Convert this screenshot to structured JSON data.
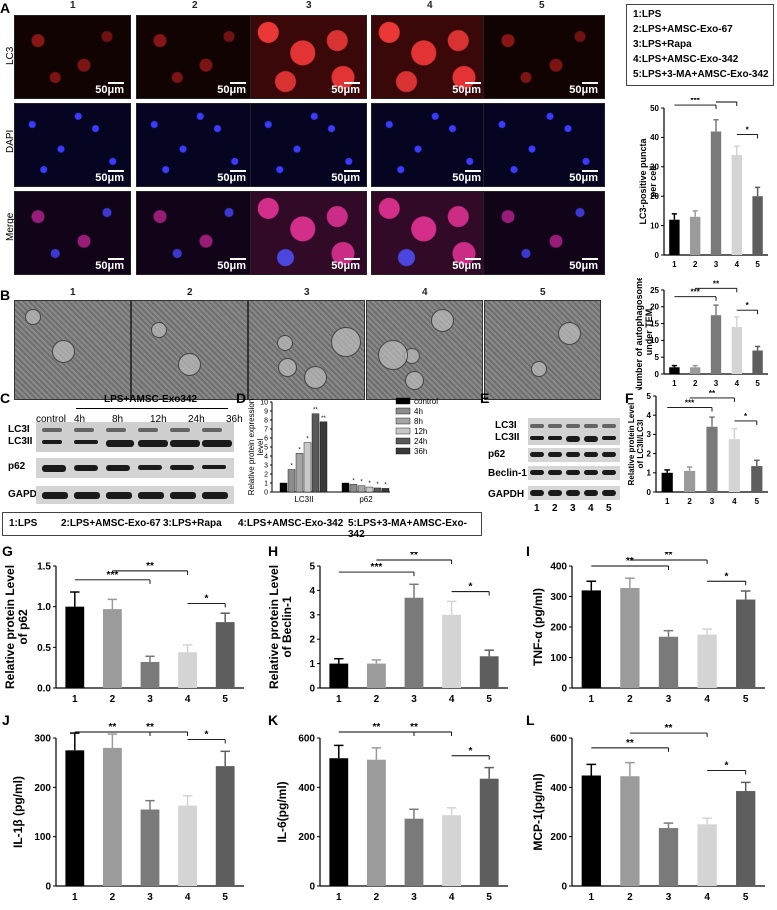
{
  "panels": {
    "A": "A",
    "B": "B",
    "C": "C",
    "D": "D",
    "E": "E",
    "F": "F",
    "G": "G",
    "H": "H",
    "I": "I",
    "J": "J",
    "K": "K",
    "L": "L"
  },
  "panelA": {
    "columns": [
      "1",
      "2",
      "3",
      "4",
      "5"
    ],
    "rows": [
      "LC3",
      "DAPI",
      "Merge"
    ],
    "scale": "50μm"
  },
  "legend_top": [
    "1:LPS",
    "2:LPS+AMSC-Exo-67",
    "3:LPS+Rapa",
    "4:LPS+AMSC-Exo-342",
    "5:LPS+3-MA+AMSC-Exo-342"
  ],
  "legend_mid": [
    "1:LPS",
    "2:LPS+AMSC-Exo-67",
    "3:LPS+Rapa",
    "4:LPS+AMSC-Exo-342",
    "5:LPS+3-MA+AMSC-Exo-342"
  ],
  "panelB": {
    "columns": [
      "1",
      "2",
      "3",
      "4",
      "5"
    ]
  },
  "panelC": {
    "header": "LPS+AMSC-Exo342",
    "columns": [
      "control",
      "4h",
      "8h",
      "12h",
      "24h",
      "36h"
    ],
    "rows": [
      "LC3I",
      "LC3II",
      "p62",
      "GAPDH"
    ]
  },
  "panelE": {
    "rows": [
      "LC3I",
      "LC3II",
      "p62",
      "Beclin-1",
      "GAPDH"
    ],
    "lanes": [
      "1",
      "2",
      "3",
      "4",
      "5"
    ]
  },
  "colors": {
    "g1": "#000000",
    "g2": "#9b9b9b",
    "g3": "#7a7a7a",
    "g4": "#d4d4d4",
    "g5": "#5e5e5e"
  },
  "chart_data": [
    {
      "id": "A-right",
      "type": "bar",
      "ylabel": "LC3-positive puncta per cell",
      "categories": [
        "1",
        "2",
        "3",
        "4",
        "5"
      ],
      "values": [
        12,
        13,
        42,
        34,
        20
      ],
      "errors": [
        2,
        2,
        4,
        3,
        3
      ],
      "ylim": [
        0,
        50
      ],
      "yticks": [
        "0",
        "10",
        "20",
        "30",
        "40",
        "50"
      ],
      "annotations": [
        {
          "from": 1,
          "to": 3,
          "label": "***"
        },
        {
          "from": 3,
          "to": 4,
          "label": "**"
        },
        {
          "from": 4,
          "to": 5,
          "label": "*"
        }
      ]
    },
    {
      "id": "B-right",
      "type": "bar",
      "ylabel": "Number of autophagosomes under TEM",
      "categories": [
        "1",
        "2",
        "3",
        "4",
        "5"
      ],
      "values": [
        2,
        2,
        17.5,
        14,
        7
      ],
      "errors": [
        0.5,
        0.5,
        3,
        3,
        1.2
      ],
      "ylim": [
        0,
        25
      ],
      "yticks": [
        "0",
        "5",
        "10",
        "15",
        "20",
        "25"
      ],
      "annotations": [
        {
          "from": 1,
          "to": 3,
          "label": "***"
        },
        {
          "from": 2,
          "to": 4,
          "label": "**"
        },
        {
          "from": 4,
          "to": 5,
          "label": "*"
        }
      ]
    },
    {
      "id": "D",
      "type": "bar",
      "ylabel": "Relative protein expression level",
      "categories": [
        "LC3II",
        "p62"
      ],
      "series": [
        {
          "name": "control",
          "values": [
            1,
            1
          ]
        },
        {
          "name": "4h",
          "values": [
            2.5,
            0.85
          ]
        },
        {
          "name": "8h",
          "values": [
            4.3,
            0.7
          ]
        },
        {
          "name": "12h",
          "values": [
            5.5,
            0.55
          ]
        },
        {
          "name": "24h",
          "values": [
            8.7,
            0.45
          ]
        },
        {
          "name": "36h",
          "values": [
            7.8,
            0.4
          ]
        }
      ],
      "ylim": [
        0,
        10
      ],
      "yticks": [
        "0",
        "1",
        "2",
        "3",
        "4",
        "5",
        "6",
        "7",
        "8",
        "9",
        "10"
      ]
    },
    {
      "id": "F",
      "type": "bar",
      "ylabel": "Relative protein Level of LC3II/LC3I",
      "categories": [
        "1",
        "2",
        "3",
        "4",
        "5"
      ],
      "values": [
        1,
        1.1,
        3.4,
        2.75,
        1.35
      ],
      "errors": [
        0.15,
        0.2,
        0.5,
        0.55,
        0.3
      ],
      "ylim": [
        0,
        5
      ],
      "yticks": [
        "0",
        "1",
        "2",
        "3",
        "4",
        "5"
      ],
      "annotations": [
        {
          "from": 1,
          "to": 3,
          "label": "***"
        },
        {
          "from": 2,
          "to": 4,
          "label": "**"
        },
        {
          "from": 4,
          "to": 5,
          "label": "*"
        }
      ]
    },
    {
      "id": "G",
      "type": "bar",
      "ylabel": "Relative protein Level of p62",
      "categories": [
        "1",
        "2",
        "3",
        "4",
        "5"
      ],
      "values": [
        1.0,
        0.97,
        0.32,
        0.44,
        0.81
      ],
      "errors": [
        0.18,
        0.12,
        0.07,
        0.09,
        0.11
      ],
      "ylim": [
        0,
        1.5
      ],
      "yticks": [
        "0.0",
        "0.5",
        "1.0",
        "1.5"
      ],
      "annotations": [
        {
          "from": 1,
          "to": 3,
          "label": "***"
        },
        {
          "from": 2,
          "to": 4,
          "label": "**"
        },
        {
          "from": 4,
          "to": 5,
          "label": "*"
        }
      ]
    },
    {
      "id": "H",
      "type": "bar",
      "ylabel": "Relative protein Level of Beclin-1",
      "categories": [
        "1",
        "2",
        "3",
        "4",
        "5"
      ],
      "values": [
        1.0,
        1.0,
        3.7,
        3.0,
        1.3
      ],
      "errors": [
        0.2,
        0.15,
        0.55,
        0.55,
        0.25
      ],
      "ylim": [
        0,
        5
      ],
      "yticks": [
        "0",
        "1",
        "2",
        "3",
        "4",
        "5"
      ],
      "annotations": [
        {
          "from": 1,
          "to": 3,
          "label": "***"
        },
        {
          "from": 2,
          "to": 4,
          "label": "**"
        },
        {
          "from": 4,
          "to": 5,
          "label": "*"
        }
      ]
    },
    {
      "id": "I",
      "type": "bar",
      "ylabel": "TNF-α (pg/ml)",
      "categories": [
        "1",
        "2",
        "3",
        "4",
        "5"
      ],
      "values": [
        320,
        328,
        168,
        175,
        290
      ],
      "errors": [
        30,
        32,
        20,
        18,
        28
      ],
      "ylim": [
        0,
        400
      ],
      "yticks": [
        "0",
        "100",
        "200",
        "300",
        "400"
      ],
      "annotations": [
        {
          "from": 1,
          "to": 3,
          "label": "**"
        },
        {
          "from": 2,
          "to": 4,
          "label": "**"
        },
        {
          "from": 4,
          "to": 5,
          "label": "*"
        }
      ]
    },
    {
      "id": "J",
      "type": "bar",
      "ylabel": "IL-1β (pg/ml)",
      "categories": [
        "1",
        "2",
        "3",
        "4",
        "5"
      ],
      "values": [
        275,
        280,
        155,
        163,
        243
      ],
      "errors": [
        35,
        28,
        18,
        20,
        30
      ],
      "ylim": [
        0,
        300
      ],
      "yticks": [
        "0",
        "100",
        "200",
        "300"
      ],
      "annotations": [
        {
          "from": 1,
          "to": 3,
          "label": "**"
        },
        {
          "from": 2,
          "to": 4,
          "label": "**"
        },
        {
          "from": 4,
          "to": 5,
          "label": "*"
        }
      ]
    },
    {
      "id": "K",
      "type": "bar",
      "ylabel": "IL-6(pg/ml)",
      "categories": [
        "1",
        "2",
        "3",
        "4",
        "5"
      ],
      "values": [
        518,
        512,
        273,
        287,
        435
      ],
      "errors": [
        52,
        48,
        38,
        30,
        45
      ],
      "ylim": [
        0,
        600
      ],
      "yticks": [
        "0",
        "200",
        "400",
        "600"
      ],
      "annotations": [
        {
          "from": 1,
          "to": 3,
          "label": "**"
        },
        {
          "from": 2,
          "to": 4,
          "label": "**"
        },
        {
          "from": 4,
          "to": 5,
          "label": "*"
        }
      ]
    },
    {
      "id": "L",
      "type": "bar",
      "ylabel": "MCP-1(pg/ml)",
      "categories": [
        "1",
        "2",
        "3",
        "4",
        "5"
      ],
      "values": [
        448,
        445,
        235,
        250,
        385
      ],
      "errors": [
        45,
        55,
        20,
        25,
        35
      ],
      "ylim": [
        0,
        600
      ],
      "yticks": [
        "0",
        "200",
        "400",
        "600"
      ],
      "annotations": [
        {
          "from": 1,
          "to": 3,
          "label": "**"
        },
        {
          "from": 2,
          "to": 4,
          "label": "**"
        },
        {
          "from": 4,
          "to": 5,
          "label": "*"
        }
      ]
    }
  ]
}
